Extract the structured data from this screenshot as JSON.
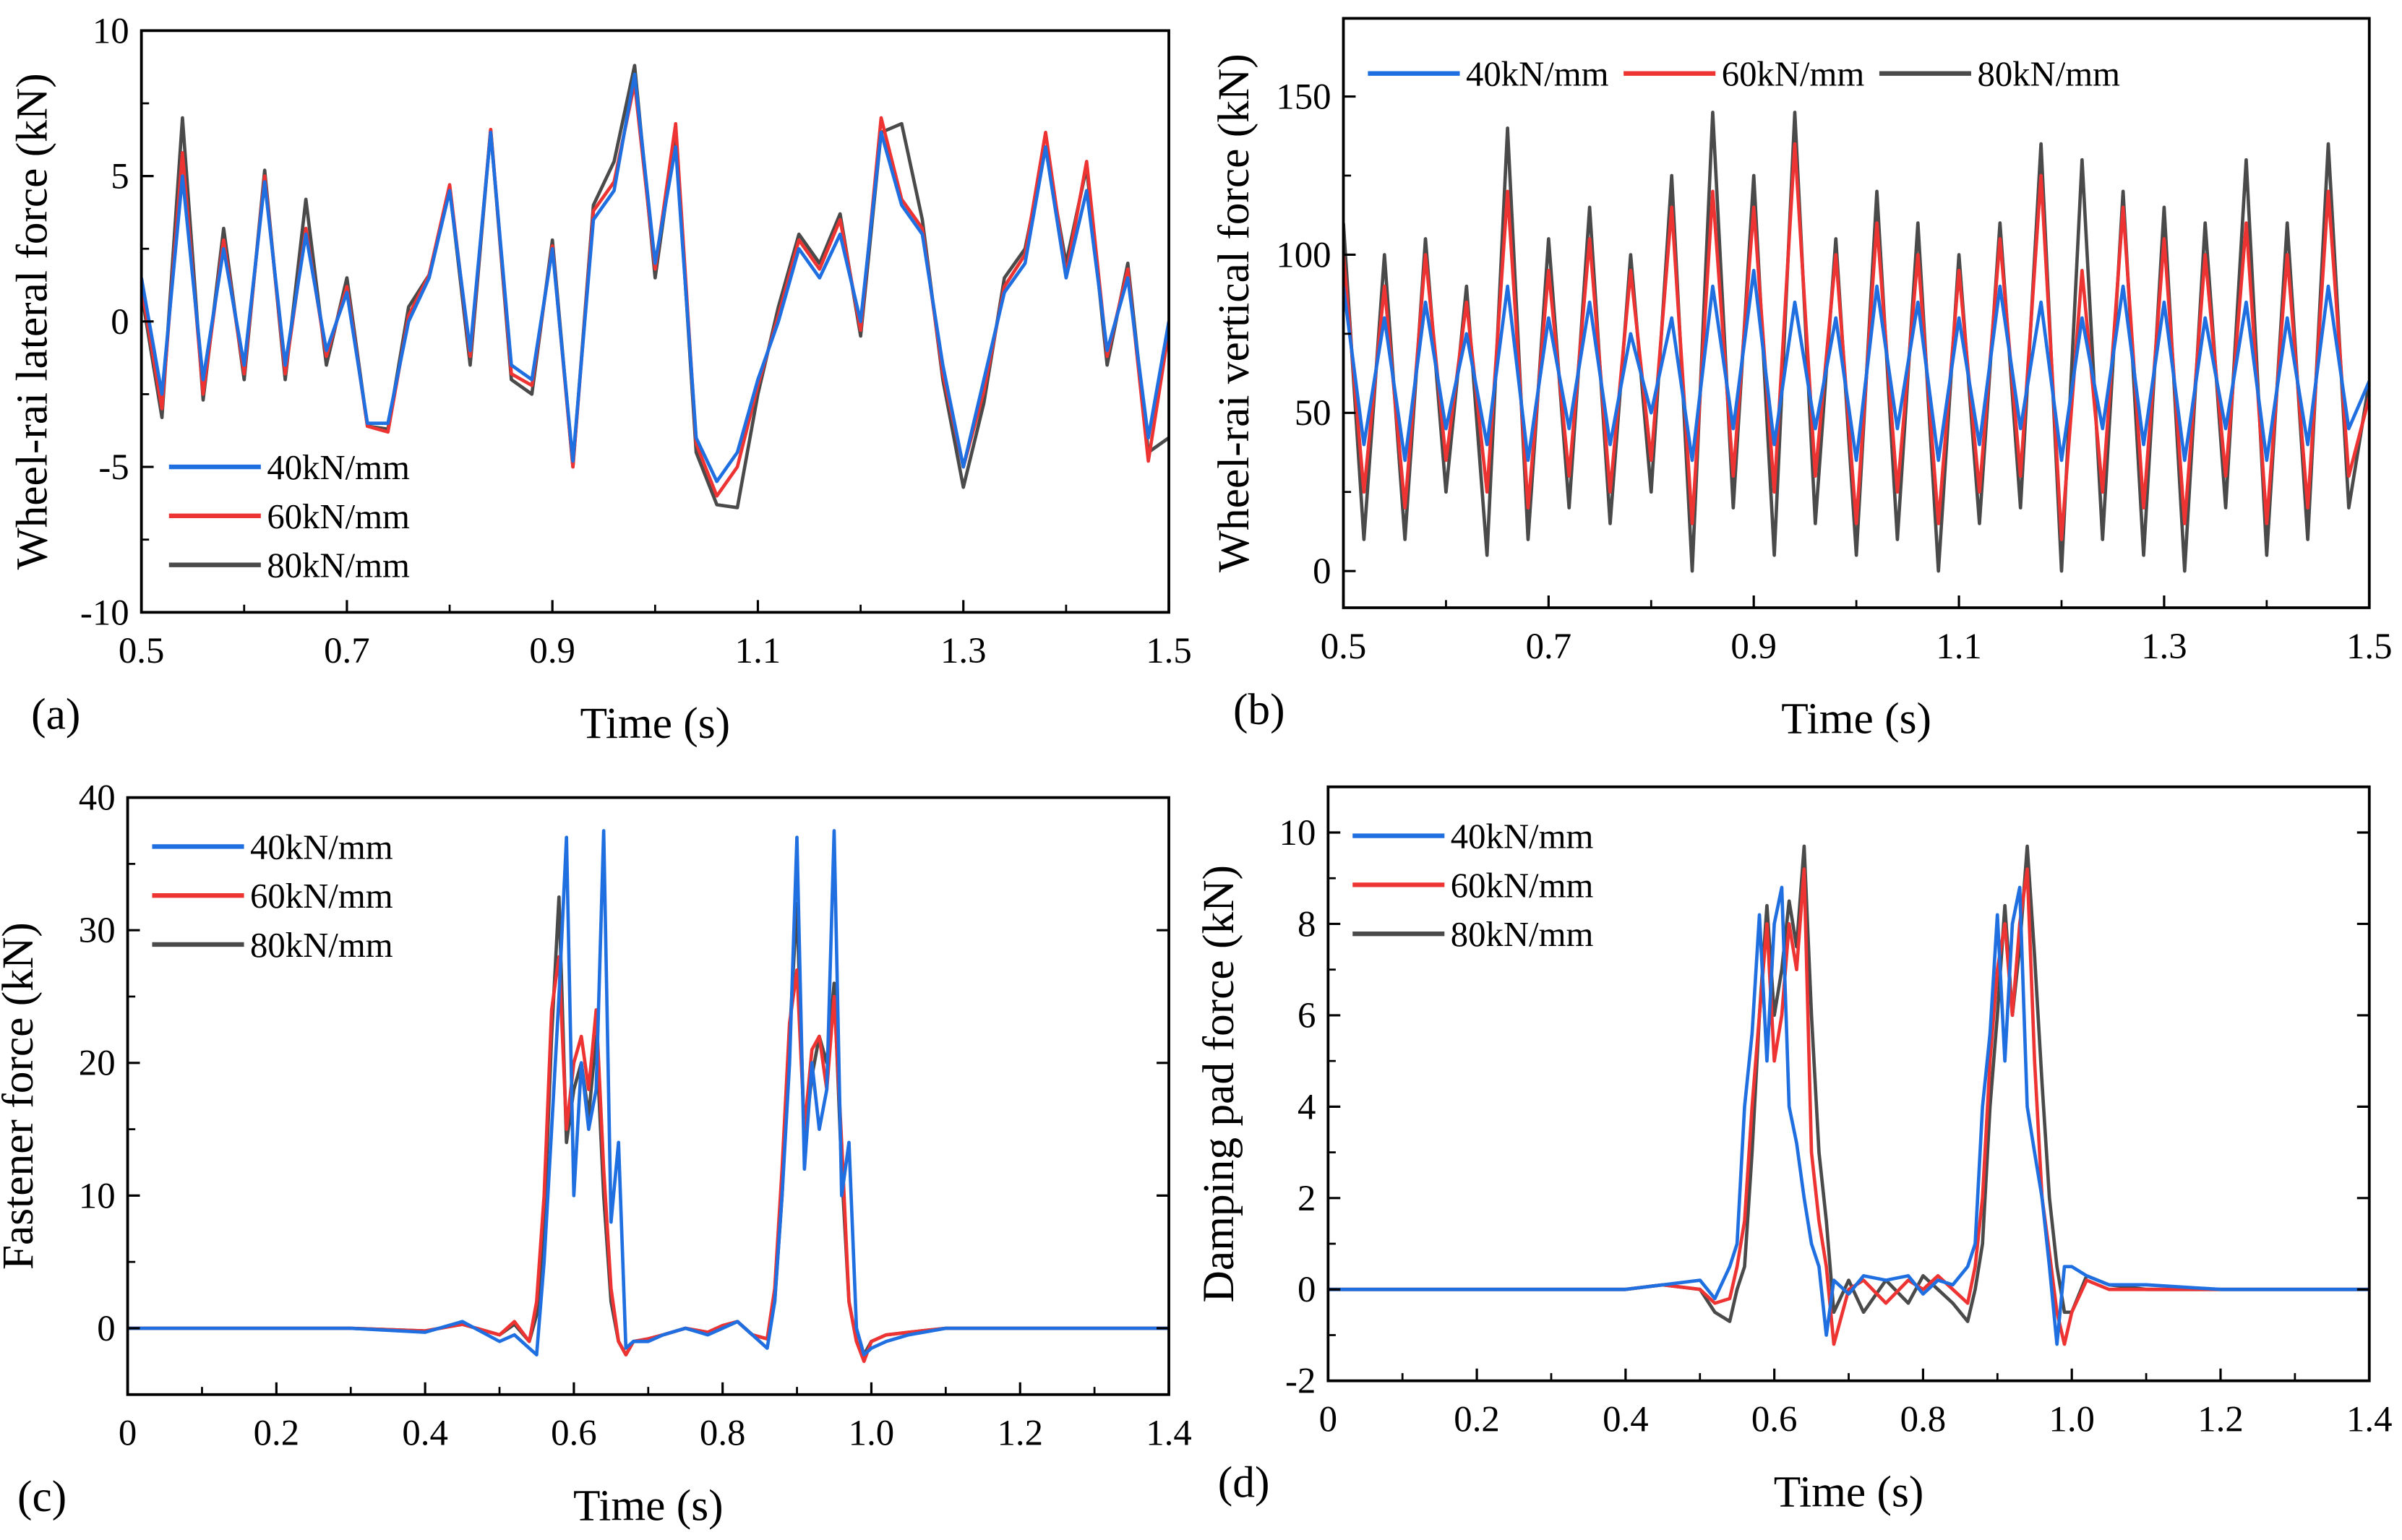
{
  "colors": {
    "s40": "#1f6fe0",
    "s60": "#ee3333",
    "s80": "#4a4a4a"
  },
  "chart_data": [
    {
      "type": "line",
      "panel": "(a)",
      "xlabel": "Time (s)",
      "ylabel": "Wheel-rai lateral force (kN)",
      "xlim": [
        0.5,
        1.5
      ],
      "ylim": [
        -10,
        10
      ],
      "xticks": [
        0.5,
        0.7,
        0.9,
        1.1,
        1.3,
        1.5
      ],
      "xtick_labels": [
        "0.5",
        "0.7",
        "0.9",
        "1.1",
        "1.3",
        "1.5"
      ],
      "yticks": [
        -10,
        -5,
        0,
        5,
        10
      ],
      "ytick_labels": [
        "-10",
        "-5",
        "0",
        "5",
        "10"
      ],
      "legend_placement": "lower-left",
      "x": [
        0.5,
        0.52,
        0.54,
        0.56,
        0.58,
        0.6,
        0.62,
        0.64,
        0.66,
        0.68,
        0.7,
        0.72,
        0.74,
        0.76,
        0.78,
        0.8,
        0.82,
        0.84,
        0.86,
        0.88,
        0.9,
        0.92,
        0.94,
        0.96,
        0.98,
        1.0,
        1.02,
        1.04,
        1.06,
        1.08,
        1.1,
        1.12,
        1.14,
        1.16,
        1.18,
        1.2,
        1.22,
        1.24,
        1.26,
        1.28,
        1.3,
        1.32,
        1.34,
        1.36,
        1.38,
        1.4,
        1.42,
        1.44,
        1.46,
        1.48,
        1.5
      ],
      "series": [
        {
          "name": "80kN/mm",
          "color": "#4a4a4a",
          "values": [
            1,
            -3.3,
            7,
            -2.7,
            3.2,
            -2,
            5.2,
            -2,
            4.2,
            -1.5,
            1.5,
            -3.6,
            -3.7,
            0.5,
            1.6,
            4.6,
            -1.5,
            6.6,
            -2,
            -2.5,
            2.8,
            -5,
            4,
            5.5,
            8.8,
            1.5,
            6.5,
            -4.5,
            -6.3,
            -6.4,
            -2.5,
            0.5,
            3,
            2,
            3.7,
            -0.5,
            6.5,
            6.8,
            3.5,
            -2,
            -5.7,
            -2.8,
            1.5,
            2.5,
            6,
            2,
            5.3,
            -1.5,
            2,
            -4.5,
            -4
          ]
        },
        {
          "name": "60kN/mm",
          "color": "#ee3333",
          "values": [
            1.2,
            -3,
            5.8,
            -2.5,
            2.8,
            -1.8,
            5,
            -1.8,
            3.2,
            -1.2,
            1.2,
            -3.6,
            -3.8,
            0.2,
            1.6,
            4.7,
            -1.2,
            6.6,
            -1.8,
            -2.2,
            2.6,
            -5,
            3.8,
            4.8,
            8.2,
            1.8,
            6.8,
            -4.2,
            -6,
            -5,
            -2.2,
            0.2,
            2.8,
            1.8,
            3.5,
            -0.3,
            7,
            4.2,
            3.2,
            -1.8,
            -5,
            -2.4,
            1.2,
            2.3,
            6.5,
            1.6,
            5.5,
            -1.2,
            1.8,
            -4.8,
            -0.3
          ]
        },
        {
          "name": "40kN/mm",
          "color": "#1f6fe0",
          "values": [
            1.5,
            -2.5,
            5,
            -2,
            2.5,
            -1.5,
            4.8,
            -1.5,
            3,
            -1,
            1,
            -3.5,
            -3.5,
            0,
            1.5,
            4.5,
            -1,
            6.5,
            -1.5,
            -2,
            2.5,
            -4.8,
            3.5,
            4.5,
            8.5,
            2,
            6,
            -4,
            -5.5,
            -4.5,
            -2,
            0,
            2.5,
            1.5,
            3,
            0,
            6.5,
            4,
            3,
            -1.5,
            -5,
            -2,
            1,
            2,
            6,
            1.5,
            4.5,
            -1,
            1.5,
            -4,
            0
          ]
        }
      ],
      "legend": [
        "40kN/mm",
        "60kN/mm",
        "80kN/mm"
      ]
    },
    {
      "type": "line",
      "panel": "(b)",
      "xlabel": "Time (s)",
      "ylabel": "Wheel-rai vertical  force (kN)",
      "xlim": [
        0.5,
        1.5
      ],
      "ylim": [
        -11.6,
        174.7
      ],
      "xticks": [
        0.5,
        0.7,
        0.9,
        1.1,
        1.3,
        1.5
      ],
      "xtick_labels": [
        "0.5",
        "0.7",
        "0.9",
        "1.1",
        "1.3",
        "1.5"
      ],
      "yticks": [
        0,
        50,
        100,
        150
      ],
      "ytick_labels": [
        "0",
        "50",
        "100",
        "150"
      ],
      "legend_placement": "top",
      "x": [
        0.5,
        0.52,
        0.54,
        0.56,
        0.58,
        0.6,
        0.62,
        0.64,
        0.66,
        0.68,
        0.7,
        0.72,
        0.74,
        0.76,
        0.78,
        0.8,
        0.82,
        0.84,
        0.86,
        0.88,
        0.9,
        0.92,
        0.94,
        0.96,
        0.98,
        1.0,
        1.02,
        1.04,
        1.06,
        1.08,
        1.1,
        1.12,
        1.14,
        1.16,
        1.18,
        1.2,
        1.22,
        1.24,
        1.26,
        1.28,
        1.3,
        1.32,
        1.34,
        1.36,
        1.38,
        1.4,
        1.42,
        1.44,
        1.46,
        1.48,
        1.5
      ],
      "series": [
        {
          "name": "80kN/mm",
          "color": "#4a4a4a",
          "values": [
            110,
            10,
            100,
            10,
            105,
            25,
            90,
            5,
            140,
            10,
            105,
            20,
            115,
            15,
            100,
            25,
            125,
            0,
            145,
            20,
            125,
            5,
            145,
            15,
            105,
            5,
            120,
            10,
            110,
            0,
            100,
            15,
            110,
            20,
            135,
            0,
            130,
            10,
            120,
            5,
            115,
            0,
            110,
            20,
            130,
            5,
            110,
            10,
            135,
            20,
            60
          ]
        },
        {
          "name": "60kN/mm",
          "color": "#ee3333",
          "values": [
            100,
            25,
            90,
            20,
            100,
            35,
            85,
            25,
            120,
            20,
            95,
            30,
            105,
            25,
            95,
            35,
            115,
            15,
            120,
            30,
            115,
            25,
            135,
            30,
            100,
            15,
            110,
            25,
            100,
            15,
            95,
            25,
            105,
            30,
            125,
            10,
            95,
            25,
            115,
            20,
            105,
            15,
            100,
            30,
            110,
            15,
            100,
            20,
            120,
            30,
            55
          ]
        },
        {
          "name": "40kN/mm",
          "color": "#1f6fe0",
          "values": [
            90,
            40,
            80,
            35,
            85,
            45,
            75,
            40,
            90,
            35,
            80,
            45,
            85,
            40,
            75,
            50,
            80,
            35,
            90,
            45,
            95,
            40,
            85,
            45,
            80,
            35,
            90,
            45,
            85,
            35,
            80,
            40,
            90,
            45,
            85,
            35,
            80,
            45,
            90,
            40,
            85,
            35,
            80,
            45,
            85,
            35,
            80,
            40,
            90,
            45,
            60
          ]
        }
      ],
      "legend": [
        "40kN/mm",
        "60kN/mm",
        "80kN/mm"
      ]
    },
    {
      "type": "line",
      "panel": "(c)",
      "xlabel": "Time (s)",
      "ylabel": "Fastener force (kN)",
      "xlim": [
        0,
        1.4
      ],
      "ylim": [
        -5,
        40
      ],
      "xticks": [
        0,
        0.2,
        0.4,
        0.6,
        0.8,
        1.0,
        1.2,
        1.4
      ],
      "xtick_labels": [
        "0",
        "0.2",
        "0.4",
        "0.6",
        "0.8",
        "1.0",
        "1.2",
        "1.4"
      ],
      "yticks": [
        0,
        10,
        20,
        30,
        40
      ],
      "ytick_labels": [
        "0",
        "10",
        "20",
        "30",
        "40"
      ],
      "legend_placement": "top-left",
      "x": [
        0,
        0.1,
        0.2,
        0.3,
        0.4,
        0.45,
        0.5,
        0.52,
        0.54,
        0.55,
        0.56,
        0.57,
        0.58,
        0.59,
        0.6,
        0.61,
        0.62,
        0.63,
        0.64,
        0.65,
        0.66,
        0.67,
        0.68,
        0.7,
        0.72,
        0.75,
        0.78,
        0.8,
        0.82,
        0.84,
        0.86,
        0.87,
        0.88,
        0.89,
        0.9,
        0.91,
        0.92,
        0.93,
        0.94,
        0.95,
        0.96,
        0.97,
        0.98,
        0.99,
        1.0,
        1.02,
        1.05,
        1.1,
        1.2,
        1.3,
        1.4
      ],
      "series": [
        {
          "name": "80kN/mm",
          "color": "#4a4a4a",
          "values": [
            0,
            0,
            0,
            0,
            -0.2,
            0.3,
            -0.5,
            0.3,
            -1,
            1,
            8,
            22,
            32.5,
            14,
            18,
            20,
            16,
            22,
            10,
            2,
            -1,
            -2,
            -1,
            -0.8,
            -0.5,
            0,
            -0.3,
            0.2,
            0.5,
            -0.5,
            -0.8,
            2,
            10,
            22,
            32,
            14,
            19,
            22,
            20,
            26,
            12,
            2,
            -1,
            -2,
            -1,
            -0.5,
            -0.3,
            0,
            0,
            0,
            0
          ]
        },
        {
          "name": "60kN/mm",
          "color": "#ee3333",
          "values": [
            0,
            0,
            0,
            0,
            -0.2,
            0.3,
            -0.5,
            0.5,
            -1,
            2,
            10,
            24,
            28,
            15,
            20,
            22,
            18,
            24,
            12,
            3,
            -1,
            -2,
            -1,
            -0.8,
            -0.5,
            0,
            -0.3,
            0.2,
            0.5,
            -0.5,
            -0.8,
            3,
            12,
            23,
            27,
            15,
            21,
            22,
            18,
            25,
            14,
            2,
            -1,
            -2.5,
            -1,
            -0.5,
            -0.3,
            0,
            0,
            0,
            0
          ]
        },
        {
          "name": "40kN/mm",
          "color": "#1f6fe0",
          "values": [
            0,
            0,
            0,
            0,
            -0.3,
            0.5,
            -1,
            -0.5,
            -1.5,
            -2,
            5,
            15,
            25,
            37,
            10,
            20,
            15,
            18,
            37.5,
            8,
            14,
            -1.5,
            -1,
            -1,
            -0.5,
            0,
            -0.5,
            0,
            0.5,
            -0.5,
            -1.5,
            2,
            10,
            20,
            37,
            12,
            20,
            15,
            18,
            37.5,
            10,
            14,
            0,
            -2,
            -1.5,
            -1,
            -0.5,
            0,
            0,
            0,
            0
          ]
        }
      ],
      "legend": [
        "40kN/mm",
        "60kN/mm",
        "80kN/mm"
      ]
    },
    {
      "type": "line",
      "panel": "(d)",
      "xlabel": "Time (s)",
      "ylabel": "Damping pad force (kN)",
      "xlim": [
        0,
        1.4
      ],
      "ylim": [
        -2,
        11
      ],
      "xticks": [
        0,
        0.2,
        0.4,
        0.6,
        0.8,
        1.0,
        1.2,
        1.4
      ],
      "xtick_labels": [
        "0",
        "0.2",
        "0.4",
        "0.6",
        "0.8",
        "1.0",
        "1.2",
        "1.4"
      ],
      "yticks": [
        -2,
        0,
        2,
        4,
        6,
        8,
        10
      ],
      "ytick_labels": [
        "-2",
        "0",
        "2",
        "4",
        "6",
        "8",
        "10"
      ],
      "legend_placement": "top-left",
      "x": [
        0,
        0.1,
        0.2,
        0.3,
        0.4,
        0.45,
        0.5,
        0.52,
        0.54,
        0.55,
        0.56,
        0.57,
        0.58,
        0.59,
        0.6,
        0.61,
        0.62,
        0.63,
        0.64,
        0.65,
        0.66,
        0.67,
        0.68,
        0.7,
        0.72,
        0.75,
        0.78,
        0.8,
        0.82,
        0.84,
        0.86,
        0.87,
        0.88,
        0.89,
        0.9,
        0.91,
        0.92,
        0.93,
        0.94,
        0.95,
        0.96,
        0.97,
        0.98,
        0.99,
        1.0,
        1.02,
        1.05,
        1.1,
        1.2,
        1.3,
        1.4
      ],
      "series": [
        {
          "name": "80kN/mm",
          "color": "#4a4a4a",
          "values": [
            0,
            0,
            0,
            0,
            0,
            0.1,
            0,
            -0.5,
            -0.7,
            0,
            0.5,
            3,
            6,
            8.4,
            6,
            7,
            8.5,
            7.5,
            9.7,
            6,
            3,
            1.5,
            -0.5,
            0.2,
            -0.5,
            0.2,
            -0.3,
            0.3,
            0,
            -0.3,
            -0.7,
            0,
            1,
            4,
            6,
            8.4,
            6,
            7.5,
            9.7,
            7.3,
            4.5,
            2,
            0.5,
            -0.5,
            -0.5,
            0.3,
            0.1,
            0,
            0,
            0,
            0
          ]
        },
        {
          "name": "60kN/mm",
          "color": "#ee3333",
          "values": [
            0,
            0,
            0,
            0,
            0,
            0.1,
            0,
            -0.3,
            -0.2,
            0.5,
            1.5,
            4,
            6,
            8,
            5,
            6,
            8,
            7,
            9.2,
            3,
            1.5,
            0.5,
            -1.2,
            0,
            0.2,
            -0.3,
            0.2,
            0,
            0.3,
            0,
            -0.3,
            0.5,
            2,
            5,
            7,
            8,
            6,
            8,
            9.2,
            5,
            2,
            0.8,
            -0.5,
            -1.2,
            -0.5,
            0.2,
            0,
            0,
            0,
            0,
            0
          ]
        },
        {
          "name": "40kN/mm",
          "color": "#1f6fe0",
          "values": [
            0,
            0,
            0,
            0,
            0,
            0.1,
            0.2,
            -0.2,
            0.5,
            1,
            4,
            5.6,
            8.2,
            5,
            8,
            8.8,
            4,
            3.2,
            2,
            1,
            0.5,
            -1,
            0.2,
            -0.1,
            0.3,
            0.2,
            0.3,
            -0.1,
            0.2,
            0.1,
            0.5,
            1,
            4,
            5.6,
            8.2,
            5,
            8,
            8.8,
            4,
            3,
            2,
            0.5,
            -1.2,
            0.5,
            0.5,
            0.3,
            0.1,
            0.1,
            0,
            0,
            0
          ]
        }
      ],
      "legend": [
        "40kN/mm",
        "60kN/mm",
        "80kN/mm"
      ]
    }
  ]
}
